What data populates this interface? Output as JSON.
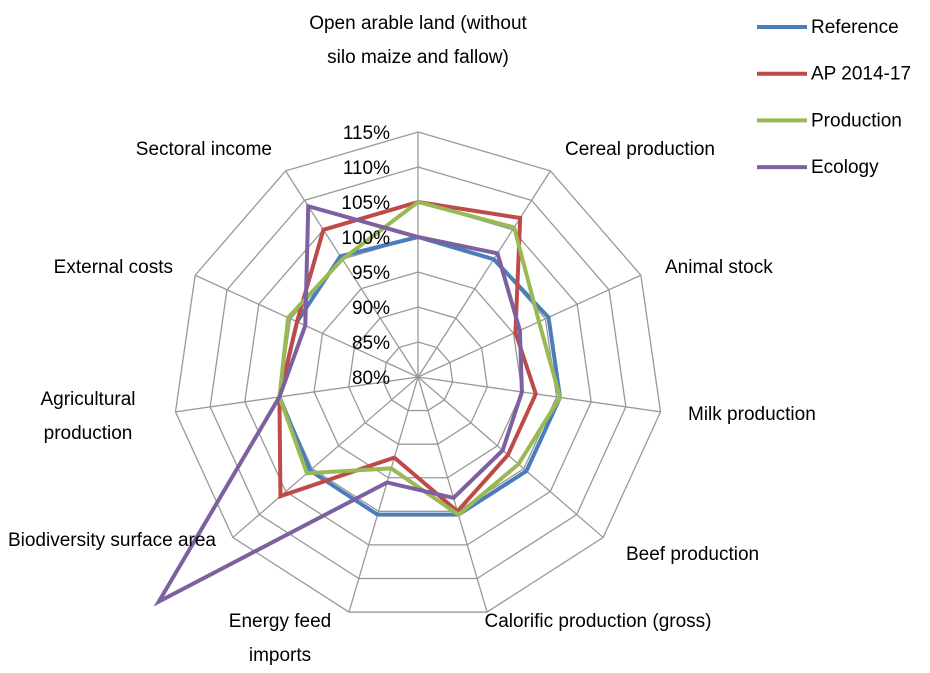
{
  "chart_data": {
    "type": "radar",
    "categories": [
      "Open arable land (without silo maize and fallow)",
      "Cereal production",
      "Animal stock",
      "Milk production",
      "Beef production",
      "Calorific production (gross)",
      "Energy feed imports",
      "Biodiversity surface area",
      "Agricultural production",
      "External costs",
      "Sectoral income"
    ],
    "series": [
      {
        "name": "Reference",
        "color": "#4a7ebb",
        "values": [
          100,
          100,
          100.5,
          100.5,
          100.5,
          100.5,
          100.5,
          100.4,
          100,
          99,
          100.5
        ]
      },
      {
        "name": "AP 2014-17",
        "color": "#be4b48",
        "values": [
          105,
          107,
          95.3,
          97,
          97,
          100,
          92,
          106,
          100,
          99,
          105
        ]
      },
      {
        "name": "Production",
        "color": "#98b954",
        "values": [
          105,
          105.4,
          99,
          100.5,
          99,
          100.5,
          93.6,
          101,
          100,
          100.4,
          100
        ]
      },
      {
        "name": "Ecology",
        "color": "#7d60a0",
        "values": [
          100,
          101,
          96,
          95,
          96,
          98,
          95.7,
          129,
          100,
          97.7,
          109
        ]
      }
    ],
    "rlim": [
      80,
      115
    ],
    "rticks": [
      {
        "value": 80,
        "label": "80%"
      },
      {
        "value": 85,
        "label": "85%"
      },
      {
        "value": 90,
        "label": "90%"
      },
      {
        "value": 95,
        "label": "95%"
      },
      {
        "value": 100,
        "label": "100%"
      },
      {
        "value": 105,
        "label": "105%"
      },
      {
        "value": 110,
        "label": "110%"
      },
      {
        "value": 115,
        "label": "115%"
      }
    ],
    "grid": true,
    "legend": "top-right"
  }
}
